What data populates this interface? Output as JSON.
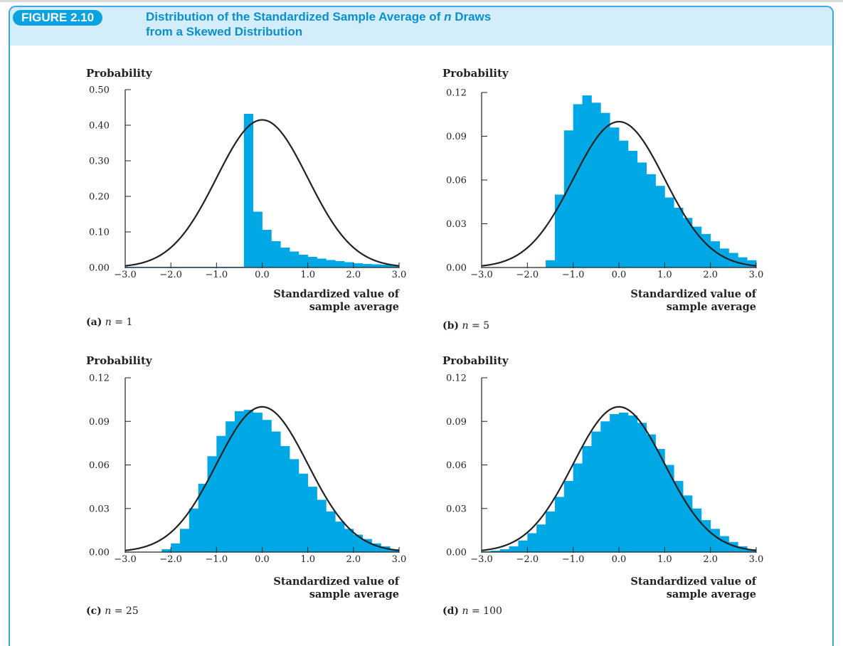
{
  "figure": {
    "badge": "FIGURE 2.10",
    "title_line1_prefix": "Distribution of the Standardized Sample Average of ",
    "title_italic_n": "n",
    "title_line1_suffix": " Draws",
    "title_line2": "from a Skewed Distribution"
  },
  "colors": {
    "bar": "#00a9e6",
    "curve": "#222222",
    "header_bg": "#d3eefa",
    "accent": "#0aa2df"
  },
  "chart_data": [
    {
      "type": "bar",
      "panel": "a",
      "caption_letter": "(a)",
      "caption_n": "n",
      "caption_rest": " = 1",
      "ylabel": "Probability",
      "xlabel_line1": "Standardized value of",
      "xlabel_line2": "sample average",
      "xlim": [
        -3.0,
        3.0
      ],
      "ylim": [
        0,
        0.5
      ],
      "xticks": [
        "−3.0",
        "−2.0",
        "−1.0",
        "0.0",
        "1.0",
        "2.0",
        "3.0"
      ],
      "yticks": [
        "0.00",
        "0.10",
        "0.20",
        "0.30",
        "0.40",
        "0.50"
      ],
      "curve_peak": 0.415,
      "bin_width": 0.2,
      "bar_x": [
        -3.0,
        -2.8,
        -2.6,
        -2.4,
        -2.2,
        -2.0,
        -1.8,
        -1.6,
        -1.4,
        -1.2,
        -1.0,
        -0.8,
        -0.6,
        -0.4,
        -0.2,
        0.0,
        0.2,
        0.4,
        0.6,
        0.8,
        1.0,
        1.2,
        1.4,
        1.6,
        1.8,
        2.0,
        2.2,
        2.4,
        2.6,
        2.8
      ],
      "values": [
        0.002,
        0.002,
        0.002,
        0.002,
        0.002,
        0.002,
        0.002,
        0.002,
        0.002,
        0.002,
        0.002,
        0.002,
        0.002,
        0.432,
        0.157,
        0.106,
        0.074,
        0.056,
        0.045,
        0.036,
        0.03,
        0.025,
        0.021,
        0.018,
        0.015,
        0.012,
        0.01,
        0.009,
        0.008,
        0.006
      ]
    },
    {
      "type": "bar",
      "panel": "b",
      "caption_letter": "(b)",
      "caption_n": "n",
      "caption_rest": " = 5",
      "ylabel": "Probability",
      "xlabel_line1": "Standardized value of",
      "xlabel_line2": "sample average",
      "xlim": [
        -3.0,
        3.0
      ],
      "ylim": [
        0,
        0.12
      ],
      "xticks": [
        "−3.0",
        "−2.0",
        "−1.0",
        "0.0",
        "1.0",
        "2.0",
        "3.0"
      ],
      "yticks": [
        "0.00",
        "0.03",
        "0.06",
        "0.09",
        "0.12"
      ],
      "curve_peak": 0.1,
      "bin_width": 0.2,
      "bar_x": [
        -1.6,
        -1.4,
        -1.2,
        -1.0,
        -0.8,
        -0.6,
        -0.4,
        -0.2,
        0.0,
        0.2,
        0.4,
        0.6,
        0.8,
        1.0,
        1.2,
        1.4,
        1.6,
        1.8,
        2.0,
        2.2,
        2.4,
        2.6,
        2.8
      ],
      "values": [
        0.005,
        0.05,
        0.094,
        0.112,
        0.118,
        0.113,
        0.106,
        0.096,
        0.087,
        0.08,
        0.072,
        0.064,
        0.056,
        0.048,
        0.041,
        0.034,
        0.028,
        0.023,
        0.018,
        0.013,
        0.01,
        0.007,
        0.005
      ]
    },
    {
      "type": "bar",
      "panel": "c",
      "caption_letter": "(c)",
      "caption_n": "n",
      "caption_rest": " = 25",
      "ylabel": "Probability",
      "xlabel_line1": "Standardized value of",
      "xlabel_line2": "sample average",
      "xlim": [
        -3.0,
        3.0
      ],
      "ylim": [
        0,
        0.12
      ],
      "xticks": [
        "−3.0",
        "−2.0",
        "−1.0",
        "0.0",
        "1.0",
        "2.0",
        "3.0"
      ],
      "yticks": [
        "0.00",
        "0.03",
        "0.06",
        "0.09",
        "0.12"
      ],
      "curve_peak": 0.1,
      "bin_width": 0.2,
      "bar_x": [
        -2.2,
        -2.0,
        -1.8,
        -1.6,
        -1.4,
        -1.2,
        -1.0,
        -0.8,
        -0.6,
        -0.4,
        -0.2,
        0.0,
        0.2,
        0.4,
        0.6,
        0.8,
        1.0,
        1.2,
        1.4,
        1.6,
        1.8,
        2.0,
        2.2,
        2.4,
        2.6,
        2.8
      ],
      "values": [
        0.002,
        0.006,
        0.016,
        0.03,
        0.047,
        0.066,
        0.08,
        0.09,
        0.097,
        0.098,
        0.096,
        0.091,
        0.083,
        0.073,
        0.064,
        0.054,
        0.045,
        0.036,
        0.028,
        0.021,
        0.016,
        0.012,
        0.009,
        0.006,
        0.004,
        0.002
      ]
    },
    {
      "type": "bar",
      "panel": "d",
      "caption_letter": "(d)",
      "caption_n": "n",
      "caption_rest": " = 100",
      "ylabel": "Probability",
      "xlabel_line1": "Standardized value of",
      "xlabel_line2": "sample average",
      "xlim": [
        -3.0,
        3.0
      ],
      "ylim": [
        0,
        0.12
      ],
      "xticks": [
        "−3.0",
        "−2.0",
        "−1.0",
        "0.0",
        "1.0",
        "2.0",
        "3.0"
      ],
      "yticks": [
        "0.00",
        "0.03",
        "0.06",
        "0.09",
        "0.12"
      ],
      "curve_peak": 0.1,
      "bin_width": 0.2,
      "bar_x": [
        -3.0,
        -2.8,
        -2.6,
        -2.4,
        -2.2,
        -2.0,
        -1.8,
        -1.6,
        -1.4,
        -1.2,
        -1.0,
        -0.8,
        -0.6,
        -0.4,
        -0.2,
        0.0,
        0.2,
        0.4,
        0.6,
        0.8,
        1.0,
        1.2,
        1.4,
        1.6,
        1.8,
        2.0,
        2.2,
        2.4,
        2.6,
        2.8
      ],
      "values": [
        0.0005,
        0.001,
        0.002,
        0.004,
        0.008,
        0.013,
        0.019,
        0.028,
        0.038,
        0.049,
        0.061,
        0.073,
        0.083,
        0.09,
        0.095,
        0.096,
        0.094,
        0.089,
        0.081,
        0.071,
        0.06,
        0.049,
        0.039,
        0.03,
        0.022,
        0.016,
        0.011,
        0.007,
        0.004,
        0.002
      ]
    }
  ]
}
